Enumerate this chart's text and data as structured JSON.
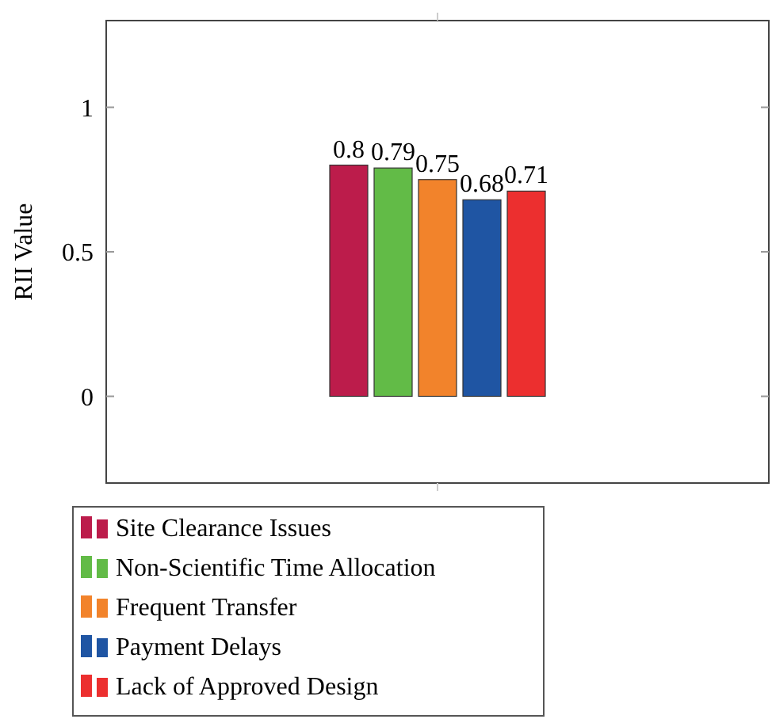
{
  "chart_data": {
    "type": "bar",
    "ylabel": "RII Value",
    "ylim": [
      -0.3,
      1.3
    ],
    "yticks": [
      0,
      0.5,
      1
    ],
    "categories": [
      null
    ],
    "tick_labels": "y",
    "data_labels": true,
    "legend": "bottom",
    "series": [
      {
        "name": "Site Clearance Issues",
        "color": "#bc1c4b",
        "values": [
          0.8
        ]
      },
      {
        "name": "Non-Scientific Time Allocation",
        "color": "#62bb47",
        "values": [
          0.79
        ]
      },
      {
        "name": "Frequent Transfer",
        "color": "#f2832b",
        "values": [
          0.75
        ]
      },
      {
        "name": "Payment Delays",
        "color": "#1f55a3",
        "values": [
          0.68
        ]
      },
      {
        "name": "Lack of Approved Design",
        "color": "#ec2f2f",
        "values": [
          0.71
        ]
      }
    ]
  }
}
